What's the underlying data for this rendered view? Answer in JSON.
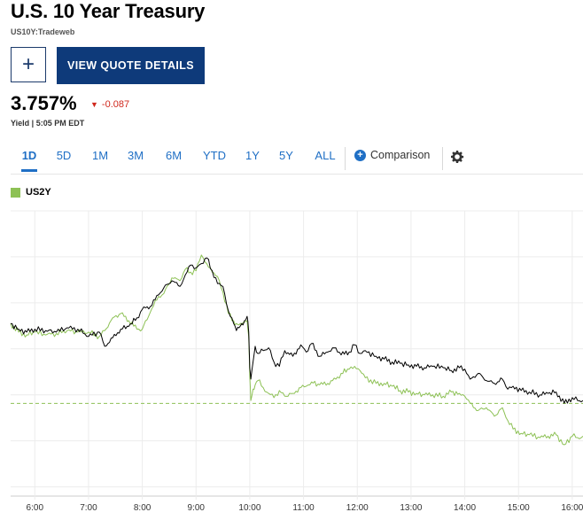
{
  "header": {
    "title": "U.S. 10 Year Treasury",
    "subtitle": "US10Y:Tradeweb",
    "add_label": "+",
    "quote_button_label": "VIEW QUOTE DETAILS"
  },
  "quote": {
    "price": "3.757%",
    "change": "-0.087",
    "change_direction": "down",
    "change_color": "#d0281d",
    "yield_label": "Yield | 5:05 PM EDT"
  },
  "tabs": [
    {
      "label": "1D",
      "active": true
    },
    {
      "label": "5D",
      "active": false
    },
    {
      "label": "1M",
      "active": false
    },
    {
      "label": "3M",
      "active": false
    },
    {
      "label": "6M",
      "active": false
    },
    {
      "label": "YTD",
      "active": false
    },
    {
      "label": "1Y",
      "active": false
    },
    {
      "label": "5Y",
      "active": false
    },
    {
      "label": "ALL",
      "active": false
    }
  ],
  "comparison_label": "Comparison",
  "settings_icon": "gear-icon",
  "colors": {
    "accent": "#1f6fc5",
    "button_bg": "#0e3a7a",
    "us10y_line": "#000000",
    "us2y_line": "#8dc155"
  },
  "legend": {
    "label": "US2Y",
    "color": "#8dc155"
  },
  "chart_data": {
    "type": "line",
    "title": "",
    "xlabel": "",
    "ylabel": "",
    "x_ticks": [
      "6:00",
      "7:00",
      "8:00",
      "9:00",
      "10:00",
      "11:00",
      "12:00",
      "13:00",
      "14:00",
      "15:00",
      "16:00"
    ],
    "x_range_hours": [
      5.55,
      16.2
    ],
    "y_norm_range": [
      0,
      1
    ],
    "grid": true,
    "legend_position": "top-left",
    "series": [
      {
        "name": "US10Y",
        "color": "#000000",
        "points": [
          [
            5.55,
            0.605
          ],
          [
            5.7,
            0.585
          ],
          [
            5.85,
            0.575
          ],
          [
            6.0,
            0.585
          ],
          [
            6.2,
            0.58
          ],
          [
            6.4,
            0.575
          ],
          [
            6.6,
            0.59
          ],
          [
            6.8,
            0.585
          ],
          [
            7.0,
            0.56
          ],
          [
            7.2,
            0.575
          ],
          [
            7.3,
            0.525
          ],
          [
            7.45,
            0.555
          ],
          [
            7.6,
            0.585
          ],
          [
            7.75,
            0.595
          ],
          [
            7.9,
            0.625
          ],
          [
            8.0,
            0.655
          ],
          [
            8.15,
            0.665
          ],
          [
            8.3,
            0.705
          ],
          [
            8.4,
            0.73
          ],
          [
            8.55,
            0.755
          ],
          [
            8.7,
            0.735
          ],
          [
            8.8,
            0.775
          ],
          [
            8.9,
            0.81
          ],
          [
            9.0,
            0.8
          ],
          [
            9.1,
            0.815
          ],
          [
            9.2,
            0.835
          ],
          [
            9.3,
            0.79
          ],
          [
            9.4,
            0.745
          ],
          [
            9.5,
            0.735
          ],
          [
            9.6,
            0.65
          ],
          [
            9.7,
            0.605
          ],
          [
            9.75,
            0.58
          ],
          [
            9.8,
            0.59
          ],
          [
            9.85,
            0.605
          ],
          [
            9.9,
            0.615
          ],
          [
            9.95,
            0.63
          ],
          [
            9.98,
            0.575
          ],
          [
            10.0,
            0.45
          ],
          [
            10.02,
            0.41
          ],
          [
            10.06,
            0.47
          ],
          [
            10.1,
            0.525
          ],
          [
            10.15,
            0.5
          ],
          [
            10.25,
            0.51
          ],
          [
            10.35,
            0.52
          ],
          [
            10.45,
            0.47
          ],
          [
            10.55,
            0.455
          ],
          [
            10.65,
            0.51
          ],
          [
            10.8,
            0.49
          ],
          [
            10.95,
            0.53
          ],
          [
            11.05,
            0.505
          ],
          [
            11.15,
            0.535
          ],
          [
            11.3,
            0.49
          ],
          [
            11.45,
            0.505
          ],
          [
            11.6,
            0.52
          ],
          [
            11.7,
            0.495
          ],
          [
            11.85,
            0.505
          ],
          [
            11.95,
            0.53
          ],
          [
            12.05,
            0.5
          ],
          [
            12.15,
            0.51
          ],
          [
            12.35,
            0.49
          ],
          [
            12.5,
            0.48
          ],
          [
            12.65,
            0.47
          ],
          [
            12.8,
            0.465
          ],
          [
            12.95,
            0.46
          ],
          [
            13.1,
            0.455
          ],
          [
            13.25,
            0.45
          ],
          [
            13.4,
            0.455
          ],
          [
            13.6,
            0.45
          ],
          [
            13.75,
            0.44
          ],
          [
            13.9,
            0.45
          ],
          [
            14.0,
            0.445
          ],
          [
            14.1,
            0.41
          ],
          [
            14.25,
            0.43
          ],
          [
            14.4,
            0.405
          ],
          [
            14.55,
            0.395
          ],
          [
            14.7,
            0.41
          ],
          [
            14.8,
            0.375
          ],
          [
            14.9,
            0.385
          ],
          [
            15.05,
            0.37
          ],
          [
            15.2,
            0.365
          ],
          [
            15.4,
            0.355
          ],
          [
            15.55,
            0.36
          ],
          [
            15.7,
            0.365
          ],
          [
            15.85,
            0.325
          ],
          [
            16.0,
            0.345
          ],
          [
            16.1,
            0.335
          ],
          [
            16.2,
            0.335
          ]
        ]
      },
      {
        "name": "US2Y",
        "color": "#8dc155",
        "points": [
          [
            5.55,
            0.605
          ],
          [
            5.7,
            0.575
          ],
          [
            5.85,
            0.565
          ],
          [
            6.0,
            0.575
          ],
          [
            6.2,
            0.565
          ],
          [
            6.4,
            0.57
          ],
          [
            6.6,
            0.58
          ],
          [
            6.8,
            0.575
          ],
          [
            7.0,
            0.575
          ],
          [
            7.2,
            0.56
          ],
          [
            7.3,
            0.58
          ],
          [
            7.45,
            0.625
          ],
          [
            7.6,
            0.64
          ],
          [
            7.75,
            0.615
          ],
          [
            7.9,
            0.585
          ],
          [
            8.0,
            0.585
          ],
          [
            8.15,
            0.645
          ],
          [
            8.3,
            0.7
          ],
          [
            8.4,
            0.71
          ],
          [
            8.55,
            0.765
          ],
          [
            8.7,
            0.755
          ],
          [
            8.8,
            0.795
          ],
          [
            8.9,
            0.785
          ],
          [
            9.0,
            0.79
          ],
          [
            9.1,
            0.845
          ],
          [
            9.2,
            0.815
          ],
          [
            9.3,
            0.785
          ],
          [
            9.4,
            0.77
          ],
          [
            9.5,
            0.715
          ],
          [
            9.6,
            0.64
          ],
          [
            9.7,
            0.615
          ],
          [
            9.75,
            0.605
          ],
          [
            9.8,
            0.6
          ],
          [
            9.85,
            0.6
          ],
          [
            9.9,
            0.61
          ],
          [
            9.95,
            0.615
          ],
          [
            9.98,
            0.56
          ],
          [
            10.0,
            0.42
          ],
          [
            10.02,
            0.335
          ],
          [
            10.06,
            0.375
          ],
          [
            10.1,
            0.39
          ],
          [
            10.15,
            0.405
          ],
          [
            10.25,
            0.38
          ],
          [
            10.35,
            0.36
          ],
          [
            10.45,
            0.345
          ],
          [
            10.55,
            0.37
          ],
          [
            10.65,
            0.35
          ],
          [
            10.8,
            0.36
          ],
          [
            10.95,
            0.38
          ],
          [
            11.05,
            0.385
          ],
          [
            11.15,
            0.4
          ],
          [
            11.3,
            0.39
          ],
          [
            11.45,
            0.395
          ],
          [
            11.6,
            0.41
          ],
          [
            11.7,
            0.43
          ],
          [
            11.85,
            0.445
          ],
          [
            11.95,
            0.455
          ],
          [
            12.05,
            0.44
          ],
          [
            12.15,
            0.415
          ],
          [
            12.35,
            0.395
          ],
          [
            12.5,
            0.395
          ],
          [
            12.65,
            0.385
          ],
          [
            12.8,
            0.37
          ],
          [
            12.95,
            0.365
          ],
          [
            13.1,
            0.36
          ],
          [
            13.25,
            0.355
          ],
          [
            13.4,
            0.355
          ],
          [
            13.6,
            0.35
          ],
          [
            13.75,
            0.365
          ],
          [
            13.9,
            0.36
          ],
          [
            14.0,
            0.35
          ],
          [
            14.1,
            0.325
          ],
          [
            14.25,
            0.3
          ],
          [
            14.4,
            0.31
          ],
          [
            14.55,
            0.28
          ],
          [
            14.7,
            0.31
          ],
          [
            14.8,
            0.265
          ],
          [
            14.9,
            0.235
          ],
          [
            15.05,
            0.22
          ],
          [
            15.2,
            0.215
          ],
          [
            15.4,
            0.205
          ],
          [
            15.55,
            0.21
          ],
          [
            15.7,
            0.215
          ],
          [
            15.85,
            0.18
          ],
          [
            16.0,
            0.21
          ],
          [
            16.1,
            0.205
          ],
          [
            16.2,
            0.21
          ]
        ]
      }
    ],
    "reference_line": {
      "color": "#8dc155",
      "style": "dashed",
      "y_norm": 0.325
    }
  }
}
